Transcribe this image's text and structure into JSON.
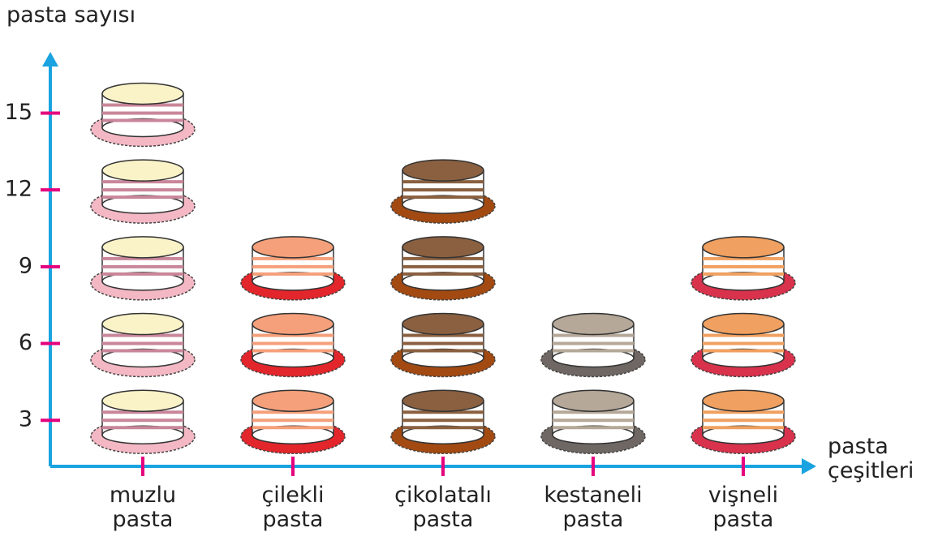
{
  "chart_data": {
    "type": "pictograph",
    "y_label": "pasta sayısı",
    "x_label": "pasta\nçeşitleri",
    "categories": [
      "muzlu\npasta",
      "çilekli\npasta",
      "çikolatalı\npasta",
      "kestaneli\npasta",
      "vişneli\npasta"
    ],
    "values": [
      15,
      9,
      12,
      6,
      9
    ],
    "plate_colors": [
      "#f3b8c4",
      "#e3262b",
      "#a24a12",
      "#6e6763",
      "#d8324c"
    ],
    "top_colors": [
      "#fbf3c8",
      "#f5a07a",
      "#8a6040",
      "#b5a898",
      "#f0a060"
    ],
    "axis_color": "#1aa3e0",
    "tick_color": "#e4007f",
    "ylim": [
      1.2,
      17.2
    ],
    "yticks": [
      3,
      6,
      9,
      12,
      15
    ]
  }
}
